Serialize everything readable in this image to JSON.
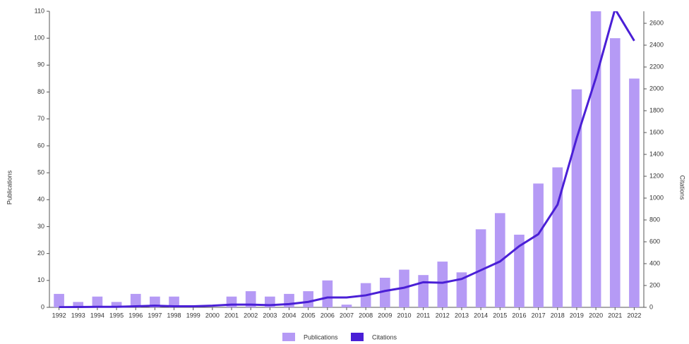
{
  "chart_data": {
    "type": "bar-line",
    "categories": [
      "1992",
      "1993",
      "1994",
      "1995",
      "1996",
      "1997",
      "1998",
      "1999",
      "2000",
      "2001",
      "2002",
      "2003",
      "2004",
      "2005",
      "2006",
      "2007",
      "2008",
      "2009",
      "2010",
      "2011",
      "2012",
      "2013",
      "2014",
      "2015",
      "2016",
      "2017",
      "2018",
      "2019",
      "2020",
      "2021",
      "2022"
    ],
    "series": [
      {
        "name": "Publications",
        "color": "#b59af5",
        "type": "bar",
        "values": [
          5,
          2,
          4,
          2,
          5,
          4,
          4,
          0,
          0,
          4,
          6,
          4,
          5,
          6,
          10,
          1,
          9,
          11,
          14,
          12,
          17,
          13,
          29,
          35,
          27,
          46,
          52,
          81,
          110,
          100,
          85
        ]
      },
      {
        "name": "Citations",
        "color": "#4a1fd6",
        "type": "line",
        "axis": "y2",
        "values": [
          2,
          3,
          5,
          5,
          10,
          15,
          10,
          10,
          15,
          25,
          25,
          20,
          30,
          50,
          90,
          90,
          110,
          150,
          180,
          230,
          225,
          260,
          340,
          420,
          560,
          670,
          940,
          1550,
          2100,
          2730,
          2440
        ]
      }
    ],
    "ylabel": "Publications",
    "y2label": "Citations",
    "ylim": [
      0,
      110
    ],
    "yticks": [
      0,
      10,
      20,
      30,
      40,
      50,
      60,
      70,
      80,
      90,
      100,
      110
    ],
    "y2lim": [
      0,
      2710
    ],
    "y2ticks": [
      0,
      200,
      400,
      600,
      800,
      1000,
      1200,
      1400,
      1600,
      1800,
      2000,
      2200,
      2400,
      2600
    ],
    "legend": "bottom"
  }
}
